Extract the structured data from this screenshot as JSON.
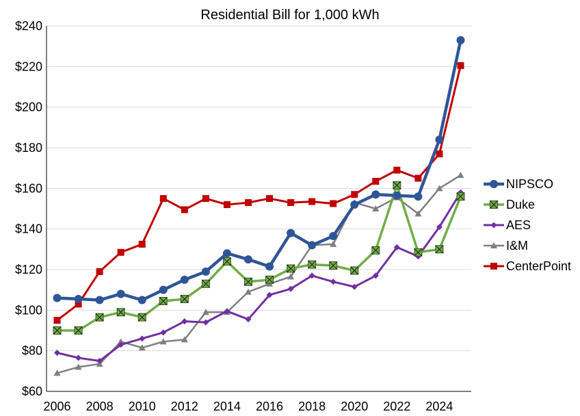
{
  "chart_data": {
    "type": "line",
    "title": "Residential Bill for 1,000 kWh",
    "xlabel": "",
    "ylabel": "",
    "x": [
      2006,
      2007,
      2008,
      2009,
      2010,
      2011,
      2012,
      2013,
      2014,
      2015,
      2016,
      2017,
      2018,
      2019,
      2020,
      2021,
      2022,
      2023,
      2024,
      2025
    ],
    "xlim": [
      2005.5,
      2025.5
    ],
    "ylim": [
      60,
      240
    ],
    "x_ticks": [
      2006,
      2008,
      2010,
      2012,
      2014,
      2016,
      2018,
      2020,
      2022,
      2024
    ],
    "x_tick_labels": [
      "2006",
      "2008",
      "2010",
      "2012",
      "2014",
      "2016",
      "2018",
      "2020",
      "2022",
      "2024"
    ],
    "y_ticks": [
      60,
      80,
      100,
      120,
      140,
      160,
      180,
      200,
      220,
      240
    ],
    "y_tick_labels": [
      "$60",
      "$80",
      "$100",
      "$120",
      "$140",
      "$160",
      "$180",
      "$200",
      "$220",
      "$240"
    ],
    "grid": true,
    "legend_position": "right",
    "series": [
      {
        "name": "NIPSCO",
        "color": "#2F5597",
        "marker": "circle",
        "values": [
          106,
          105.5,
          105,
          108,
          105,
          110,
          115,
          119,
          128,
          125,
          121.5,
          138,
          132,
          136.5,
          152,
          157,
          156.5,
          156,
          184,
          233
        ]
      },
      {
        "name": "Duke",
        "color": "#70AD47",
        "marker": "square-x",
        "values": [
          90,
          90,
          96.5,
          99,
          96.5,
          104.5,
          105.5,
          113,
          124,
          114,
          115,
          120.5,
          122.5,
          122,
          119.5,
          129.5,
          161.5,
          128.5,
          130,
          156
        ]
      },
      {
        "name": "AES",
        "color": "#7030A0",
        "marker": "diamond",
        "values": [
          79,
          76.5,
          75,
          83,
          86,
          89,
          94.5,
          94,
          99.5,
          95.5,
          107.5,
          110.5,
          117,
          114,
          111.5,
          117,
          131,
          126.5,
          141,
          158
        ]
      },
      {
        "name": "I&M",
        "color": "#7F7F7F",
        "marker": "triangle",
        "values": [
          69,
          72,
          73.5,
          84.5,
          81.5,
          84.5,
          85.5,
          99,
          99,
          109,
          113,
          116.5,
          132,
          132.5,
          153,
          150,
          155.5,
          147.5,
          160,
          166.5
        ]
      },
      {
        "name": "CenterPoint",
        "color": "#C00000",
        "marker": "square",
        "values": [
          95,
          103,
          119,
          128.5,
          132.5,
          155,
          149.5,
          155,
          152,
          153,
          155,
          153,
          153.5,
          152.5,
          157,
          163.5,
          169,
          165,
          177,
          220.5
        ]
      }
    ]
  }
}
